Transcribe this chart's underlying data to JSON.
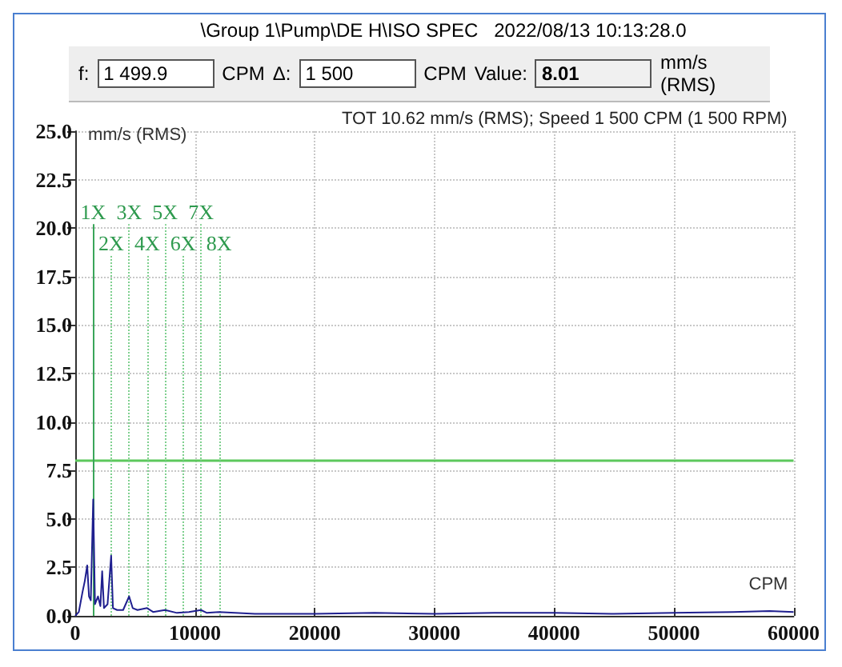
{
  "chart_data": {
    "type": "line",
    "title": "\\Group 1\\Pump\\DE H\\ISO SPEC   2022/08/13 10:13:28.0",
    "subtitle": "TOT 10.62 mm/s (RMS); Speed 1 500 CPM (1 500 RPM)",
    "xlabel": "CPM",
    "ylabel": "mm/s (RMS)",
    "annotations": [
      "f:",
      "1 499.9",
      "CPM",
      "Δ:",
      "1 500",
      "CPM",
      "Value:",
      "8.01",
      "mm/s (RMS)"
    ],
    "x": [
      0,
      300,
      600,
      800,
      1000,
      1150,
      1300,
      1500,
      1650,
      1900,
      2100,
      2250,
      2400,
      2700,
      3000,
      3150,
      3500,
      4000,
      4500,
      4800,
      5200,
      6000,
      6500,
      7500,
      8500,
      9500,
      10500,
      11000,
      12000,
      15000,
      20000,
      25000,
      30000,
      35000,
      40000,
      45000,
      50000,
      55000,
      58000,
      60000
    ],
    "series": [
      {
        "color": "#1f1f8f",
        "values": [
          0,
          0.2,
          1.2,
          1.8,
          2.6,
          1.0,
          0.8,
          6.0,
          0.6,
          1.0,
          0.5,
          2.3,
          0.4,
          0.6,
          3.1,
          0.4,
          0.3,
          0.3,
          1.0,
          0.4,
          0.3,
          0.4,
          0.2,
          0.3,
          0.15,
          0.2,
          0.3,
          0.15,
          0.2,
          0.1,
          0.1,
          0.15,
          0.1,
          0.15,
          0.15,
          0.1,
          0.15,
          0.2,
          0.25,
          0.2
        ]
      }
    ],
    "xlim": [
      0,
      60000
    ],
    "ylim": [
      0,
      25
    ],
    "xticks": [
      0,
      10000,
      20000,
      30000,
      40000,
      50000,
      60000
    ],
    "yticks": [
      {
        "value": 0,
        "label": "0.0"
      },
      {
        "value": 2.5,
        "label": "2.5"
      },
      {
        "value": 5,
        "label": "5.0"
      },
      {
        "value": 7.5,
        "label": "7.5"
      },
      {
        "value": 10,
        "label": "10.0"
      },
      {
        "value": 12.5,
        "label": "12.5"
      },
      {
        "value": 15,
        "label": "15.0"
      },
      {
        "value": 17.5,
        "label": "17.5"
      },
      {
        "value": 20,
        "label": "20.0"
      },
      {
        "value": 22.5,
        "label": "22.5"
      },
      {
        "value": 25,
        "label": "25.0"
      }
    ],
    "grid": true,
    "marker": "none",
    "ref_lines": [
      {
        "axis": "y",
        "value": 8,
        "color": "#5cc85c",
        "line_style": "solid"
      },
      {
        "axis": "x",
        "value": 1500,
        "label": "1X",
        "color": "#3aa65a",
        "line_style": "solid"
      },
      {
        "axis": "x",
        "value": 3000,
        "label": "2X",
        "color": "#7fd08f",
        "line_style": "dotted"
      },
      {
        "axis": "x",
        "value": 4500,
        "label": "3X",
        "color": "#7fd08f",
        "line_style": "dotted"
      },
      {
        "axis": "x",
        "value": 6000,
        "label": "4X",
        "color": "#7fd08f",
        "line_style": "dotted"
      },
      {
        "axis": "x",
        "value": 7500,
        "label": "5X",
        "color": "#7fd08f",
        "line_style": "dotted"
      },
      {
        "axis": "x",
        "value": 9000,
        "label": "6X",
        "color": "#7fd08f",
        "line_style": "dotted"
      },
      {
        "axis": "x",
        "value": 10500,
        "label": "7X",
        "color": "#7fd08f",
        "line_style": "dotted"
      },
      {
        "axis": "x",
        "value": 12000,
        "label": "8X",
        "color": "#7fd08f",
        "line_style": "dotted"
      }
    ]
  }
}
